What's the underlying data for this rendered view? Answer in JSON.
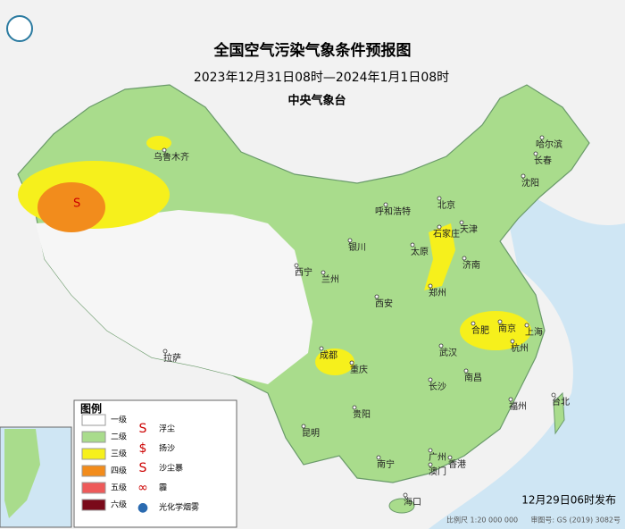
{
  "header": {
    "title": "全国空气污染气象条件预报图",
    "subtitle": "2023年12月31日08时—2024年1月1日08时",
    "issuer": "中央气象台"
  },
  "cities": [
    "哈尔滨",
    "长春",
    "沈阳",
    "乌鲁木齐",
    "呼和浩特",
    "北京",
    "天津",
    "石家庄",
    "太原",
    "济南",
    "银川",
    "西宁",
    "兰州",
    "郑州",
    "西安",
    "合肥",
    "南京",
    "上海",
    "杭州",
    "成都",
    "重庆",
    "武汉",
    "拉萨",
    "长沙",
    "南昌",
    "贵阳",
    "昆明",
    "福州",
    "台北",
    "广州",
    "南宁",
    "香港",
    "澳门",
    "海口"
  ],
  "legend": {
    "title": "图例",
    "levels": [
      {
        "label": "一级",
        "color": "#ffffff"
      },
      {
        "label": "二级",
        "color": "#a9dc8c"
      },
      {
        "label": "三级",
        "color": "#f6f01c"
      },
      {
        "label": "四级",
        "color": "#f28c1c"
      },
      {
        "label": "五级",
        "color": "#ee5a5a"
      },
      {
        "label": "六级",
        "color": "#7a0a1a"
      }
    ],
    "phenomena": [
      "浮尘",
      "扬沙",
      "沙尘暴",
      "霾",
      "光化学烟雾"
    ]
  },
  "footer": {
    "issued": "12月29日06时发布",
    "scale": "比例尺 1:20 000 000",
    "review": "审图号: GS (2019) 3082号"
  }
}
